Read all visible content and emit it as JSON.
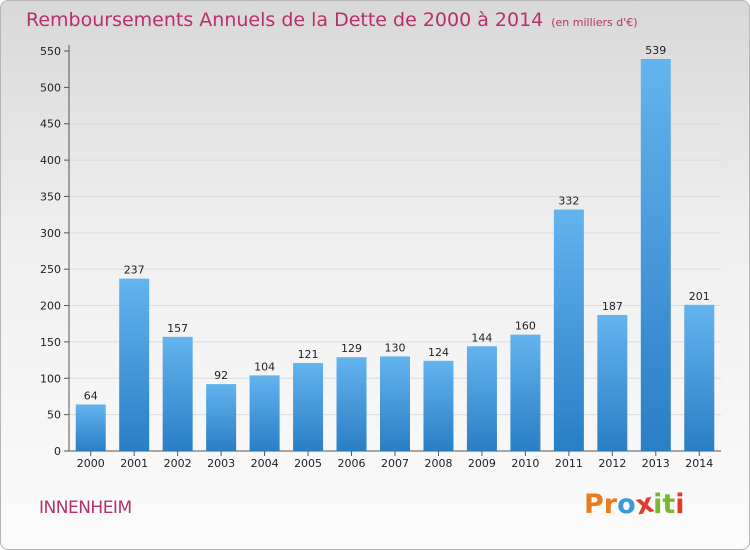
{
  "chart_data": {
    "type": "bar",
    "title": "Remboursements Annuels de la Dette de 2000 à 2014",
    "subtitle": "(en milliers d'€)",
    "categories": [
      "2000",
      "2001",
      "2002",
      "2003",
      "2004",
      "2005",
      "2006",
      "2007",
      "2008",
      "2009",
      "2010",
      "2011",
      "2012",
      "2013",
      "2014"
    ],
    "values": [
      64,
      237,
      157,
      92,
      104,
      121,
      129,
      130,
      124,
      144,
      160,
      332,
      187,
      539,
      201
    ],
    "ylim": [
      0,
      550
    ],
    "yticks": [
      0,
      50,
      100,
      150,
      200,
      250,
      300,
      350,
      400,
      450,
      500,
      550
    ],
    "xlabel": "",
    "ylabel": "",
    "grid": "horizontal",
    "bar_color_top": "#63b4ee",
    "bar_color_bottom": "#2a7ec4"
  },
  "commune": "INNENHEIM",
  "logo": {
    "letters": [
      "P",
      "r",
      "o",
      "x",
      "i",
      "t",
      "i"
    ],
    "colors": [
      "#e87d1e",
      "#e87d1e",
      "#3a9ad9",
      "#e23b2e",
      "#7ab62f",
      "#7ab62f",
      "#e23b2e"
    ]
  }
}
